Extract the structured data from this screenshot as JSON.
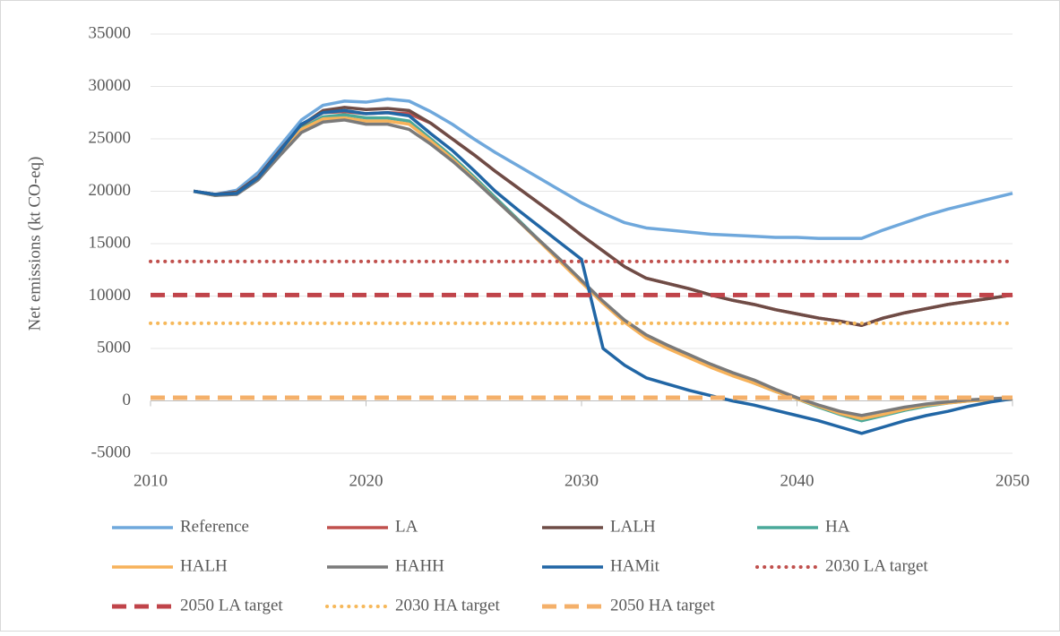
{
  "chart_data": {
    "type": "line",
    "y_label": "Net emissions (kt CO-eq)",
    "x": [
      2012,
      2013,
      2014,
      2015,
      2016,
      2017,
      2018,
      2019,
      2020,
      2021,
      2022,
      2023,
      2024,
      2025,
      2026,
      2027,
      2028,
      2029,
      2030,
      2031,
      2032,
      2033,
      2034,
      2035,
      2036,
      2037,
      2038,
      2039,
      2040,
      2041,
      2042,
      2043,
      2044,
      2045,
      2046,
      2047,
      2048,
      2049,
      2050
    ],
    "xlim": [
      2010,
      2050
    ],
    "xticks": [
      2010,
      2020,
      2030,
      2040,
      2050
    ],
    "ylim": [
      -5000,
      35000
    ],
    "yticks": [
      -5000,
      0,
      5000,
      10000,
      15000,
      20000,
      25000,
      30000,
      35000
    ],
    "grid": true,
    "series": [
      {
        "name": "Reference",
        "color": "#6fa8dc",
        "style": "solid",
        "values": [
          20000,
          19700,
          20100,
          21800,
          24300,
          26800,
          28200,
          28600,
          28500,
          28800,
          28600,
          27600,
          26400,
          25000,
          23700,
          22500,
          21300,
          20100,
          18900,
          17900,
          17000,
          16500,
          16300,
          16100,
          15900,
          15800,
          15700,
          15600,
          15600,
          15500,
          15500,
          15500,
          16300,
          17000,
          17700,
          18300,
          18800,
          19300,
          19800
        ]
      },
      {
        "name": "LA",
        "color": "#c0504d",
        "style": "solid",
        "values": [
          20000,
          19700,
          19900,
          21400,
          23900,
          26300,
          27500,
          27600,
          27400,
          27500,
          27400,
          26500,
          25000,
          23500,
          21900,
          20400,
          18900,
          17400,
          15800,
          14300,
          12800,
          11700,
          11200,
          10700,
          10100,
          9600,
          9200,
          8700,
          8300,
          7900,
          7600,
          7200,
          7900,
          8400,
          8800,
          9200,
          9500,
          9800,
          10100
        ]
      },
      {
        "name": "LALH",
        "color": "#6e4c46",
        "style": "solid",
        "values": [
          20000,
          19700,
          19900,
          21400,
          23900,
          26300,
          27700,
          28000,
          27800,
          27900,
          27700,
          26500,
          25000,
          23500,
          21900,
          20400,
          18900,
          17400,
          15800,
          14300,
          12800,
          11700,
          11200,
          10700,
          10100,
          9600,
          9200,
          8700,
          8300,
          7900,
          7600,
          7200,
          7900,
          8400,
          8800,
          9200,
          9500,
          9800,
          10100
        ]
      },
      {
        "name": "HA",
        "color": "#4aa99a",
        "style": "solid",
        "values": [
          20000,
          19600,
          19800,
          21200,
          23600,
          26000,
          27100,
          27300,
          27000,
          27000,
          26700,
          25000,
          23300,
          21400,
          19400,
          17400,
          15400,
          13400,
          11400,
          9400,
          7600,
          6100,
          5100,
          4200,
          3300,
          2500,
          1700,
          900,
          200,
          -600,
          -1300,
          -1900,
          -1400,
          -900,
          -500,
          -200,
          0,
          100,
          200
        ]
      },
      {
        "name": "HALH",
        "color": "#f7b25a",
        "style": "solid",
        "values": [
          20000,
          19600,
          19800,
          21200,
          23500,
          25900,
          26900,
          27000,
          26700,
          26700,
          26400,
          24800,
          23100,
          21200,
          19200,
          17300,
          15300,
          13300,
          11300,
          9300,
          7500,
          6000,
          5000,
          4100,
          3200,
          2400,
          1700,
          900,
          200,
          -500,
          -1200,
          -1700,
          -1300,
          -800,
          -400,
          -200,
          0,
          100,
          200
        ]
      },
      {
        "name": "HAHH",
        "color": "#7a7a7a",
        "style": "solid",
        "values": [
          20000,
          19600,
          19700,
          21100,
          23400,
          25600,
          26600,
          26800,
          26400,
          26400,
          25900,
          24500,
          22900,
          21100,
          19200,
          17300,
          15400,
          13500,
          11500,
          9500,
          7700,
          6300,
          5300,
          4400,
          3500,
          2700,
          2000,
          1100,
          300,
          -400,
          -1000,
          -1400,
          -1000,
          -600,
          -300,
          -100,
          100,
          200,
          300
        ]
      },
      {
        "name": "HAMit",
        "color": "#2166a5",
        "style": "solid",
        "values": [
          20000,
          19700,
          19800,
          21300,
          23800,
          26400,
          27500,
          27700,
          27400,
          27500,
          27200,
          25500,
          23900,
          22000,
          20000,
          18300,
          16700,
          15100,
          13500,
          5000,
          3400,
          2200,
          1600,
          1000,
          500,
          0,
          -400,
          -900,
          -1400,
          -1900,
          -2500,
          -3100,
          -2500,
          -1900,
          -1400,
          -1000,
          -500,
          -100,
          200
        ]
      },
      {
        "name": "2030 LA target",
        "color": "#c0504d",
        "style": "dotted",
        "x": [
          2010,
          2050
        ],
        "values": [
          13300,
          13300
        ]
      },
      {
        "name": "2050 LA target",
        "color": "#c0444a",
        "style": "dashed",
        "x": [
          2010,
          2050
        ],
        "values": [
          10100,
          10100
        ]
      },
      {
        "name": "2030 HA target",
        "color": "#f6b85a",
        "style": "dotted",
        "x": [
          2010,
          2050
        ],
        "values": [
          7400,
          7400
        ]
      },
      {
        "name": "2050 HA target",
        "color": "#f4b06a",
        "style": "dashed",
        "x": [
          2010,
          2050
        ],
        "values": [
          300,
          300
        ]
      }
    ]
  }
}
